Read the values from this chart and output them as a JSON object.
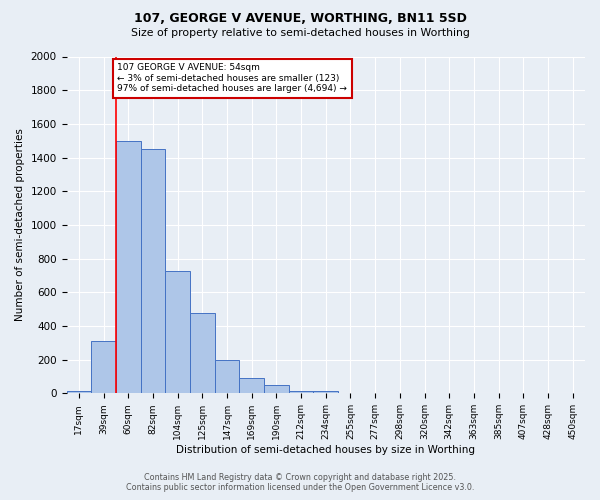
{
  "title1": "107, GEORGE V AVENUE, WORTHING, BN11 5SD",
  "title2": "Size of property relative to semi-detached houses in Worthing",
  "xlabel": "Distribution of semi-detached houses by size in Worthing",
  "ylabel": "Number of semi-detached properties",
  "footer1": "Contains HM Land Registry data © Crown copyright and database right 2025.",
  "footer2": "Contains public sector information licensed under the Open Government Licence v3.0.",
  "bar_labels": [
    "17sqm",
    "39sqm",
    "60sqm",
    "82sqm",
    "104sqm",
    "125sqm",
    "147sqm",
    "169sqm",
    "190sqm",
    "212sqm",
    "234sqm",
    "255sqm",
    "277sqm",
    "298sqm",
    "320sqm",
    "342sqm",
    "363sqm",
    "385sqm",
    "407sqm",
    "428sqm",
    "450sqm"
  ],
  "bar_values": [
    15,
    310,
    1500,
    1450,
    725,
    480,
    200,
    90,
    50,
    15,
    13,
    0,
    0,
    0,
    0,
    0,
    0,
    0,
    0,
    0,
    0
  ],
  "bar_color": "#aec6e8",
  "bar_edge_color": "#4472c4",
  "red_line_x": 1.5,
  "annotation_title": "107 GEORGE V AVENUE: 54sqm",
  "annotation_line1": "← 3% of semi-detached houses are smaller (123)",
  "annotation_line2": "97% of semi-detached houses are larger (4,694) →",
  "annotation_box_color": "#ffffff",
  "annotation_box_edge": "#cc0000",
  "ylim": [
    0,
    2000
  ],
  "yticks": [
    0,
    200,
    400,
    600,
    800,
    1000,
    1200,
    1400,
    1600,
    1800,
    2000
  ],
  "background_color": "#e8eef5",
  "grid_color": "#ffffff"
}
